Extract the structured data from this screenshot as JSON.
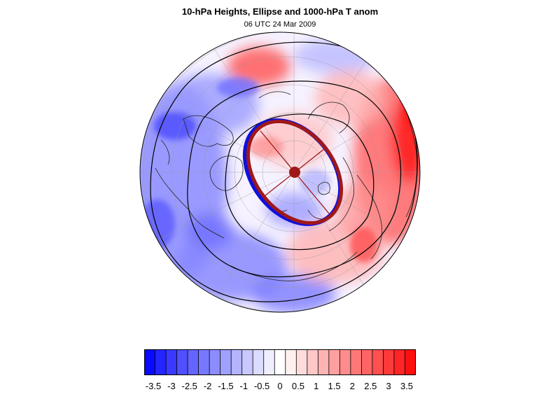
{
  "title": "10-hPa Heights, Ellipse and 1000-hPa T anom",
  "subtitle": "06 UTC 24 Mar 2009",
  "map": {
    "projection": "polar-stereographic-north",
    "pole_marker": "north-pole-dot",
    "ellipses": [
      {
        "name_color": "#1010dd",
        "role": "climatology-ellipse"
      },
      {
        "name_color": "#a01818",
        "role": "current-ellipse"
      }
    ]
  },
  "colorbar": {
    "ticks": [
      "-3.5",
      "-3",
      "-2.5",
      "-2",
      "-1.5",
      "-1",
      "-0.5",
      "0",
      "0.5",
      "1",
      "1.5",
      "2",
      "2.5",
      "3",
      "3.5"
    ],
    "colors": [
      "#0a0aff",
      "#2525ff",
      "#3a3aff",
      "#5050ff",
      "#6464ff",
      "#7878ff",
      "#8c8cff",
      "#a0a0ff",
      "#b4b4ff",
      "#c8c8ff",
      "#dcdcff",
      "#eeeeff",
      "#ffffff",
      "#fff0f0",
      "#ffdcdc",
      "#ffc8c8",
      "#ffb4b4",
      "#ffa0a0",
      "#ff8c8c",
      "#ff7878",
      "#ff6464",
      "#ff5050",
      "#ff3a3a",
      "#ff2525",
      "#ff1010"
    ]
  }
}
